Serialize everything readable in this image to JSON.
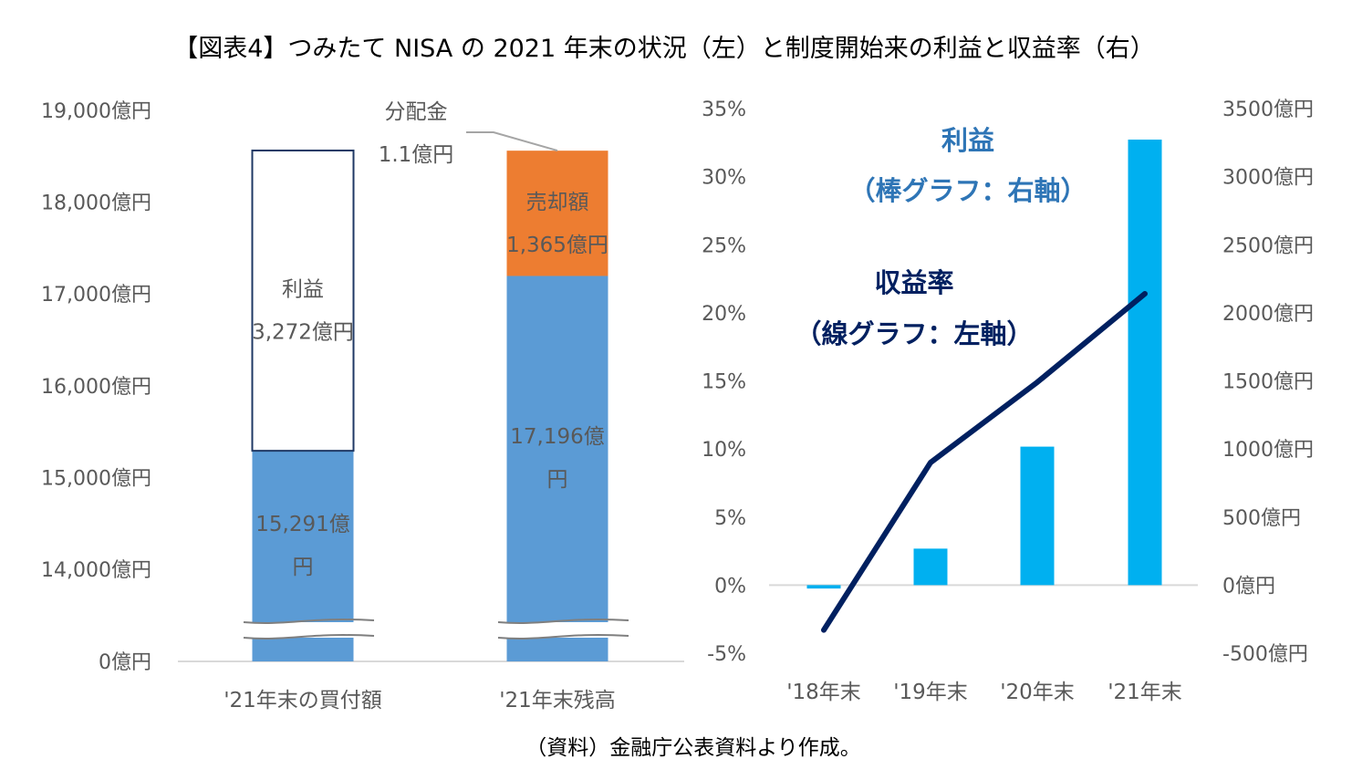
{
  "title": "【図表4】つみたて NISA の 2021 年末の状況（左）と制度開始来の利益と収益率（右）",
  "source_note": "（資料）金融庁公表資料より作成。",
  "chart_data": [
    {
      "type": "bar",
      "stacked": true,
      "broken_axis": true,
      "categories": [
        "'21年末の買付額",
        "'21年末残高"
      ],
      "y_ticks": [
        "0億円",
        "14,000億円",
        "15,000億円",
        "16,000億円",
        "17,000億円",
        "18,000億円",
        "19,000億円"
      ],
      "y_tick_values": [
        0,
        14000,
        15000,
        16000,
        17000,
        18000,
        19000
      ],
      "ylim_upper": [
        14000,
        19000
      ],
      "unit": "億円",
      "segments": [
        {
          "category": "'21年末の買付額",
          "value": 15291,
          "label": [
            "15,291億",
            "円"
          ],
          "color": "#5B9BD5"
        },
        {
          "category": "'21年末の買付額",
          "value": 3272,
          "label": [
            "利益",
            "3,272億円"
          ],
          "color": "#FFFFFF",
          "outline": "#1F3864"
        },
        {
          "category": "'21年末残高",
          "value": 17196,
          "label": [
            "17,196億",
            "円"
          ],
          "color": "#5B9BD5"
        },
        {
          "category": "'21年末残高",
          "value": 1365,
          "label": [
            "売却額",
            "1,365億円"
          ],
          "color": "#ED7D31"
        },
        {
          "category": "'21年末残高",
          "value": 1.1,
          "label": [
            "分配金",
            "1.1億円"
          ],
          "color": "#A5A5A5"
        }
      ]
    },
    {
      "type": "bar+line",
      "categories": [
        "'18年末",
        "'19年末",
        "'20年末",
        "'21年末"
      ],
      "bar_series": {
        "label": [
          "利益",
          "（棒グラフ：右軸）"
        ],
        "axis": "right",
        "values": [
          -25,
          268,
          1017,
          3272
        ],
        "color": "#00B0F0",
        "label_color": "#2E75B6"
      },
      "line_series": {
        "label": [
          "収益率",
          "（線グラフ：左軸）"
        ],
        "axis": "left",
        "values": [
          -3.3,
          9.0,
          14.9,
          21.4
        ],
        "color": "#002060"
      },
      "left_axis": {
        "ticks": [
          "35%",
          "30%",
          "25%",
          "20%",
          "15%",
          "10%",
          "5%",
          "0%",
          "-5%"
        ],
        "ylim": [
          -5,
          35
        ]
      },
      "right_axis": {
        "ticks": [
          "3500億円",
          "3000億円",
          "2500億円",
          "2000億円",
          "1500億円",
          "1000億円",
          "500億円",
          "0億円",
          "-500億円"
        ],
        "ylim": [
          -500,
          3500
        ]
      }
    }
  ]
}
